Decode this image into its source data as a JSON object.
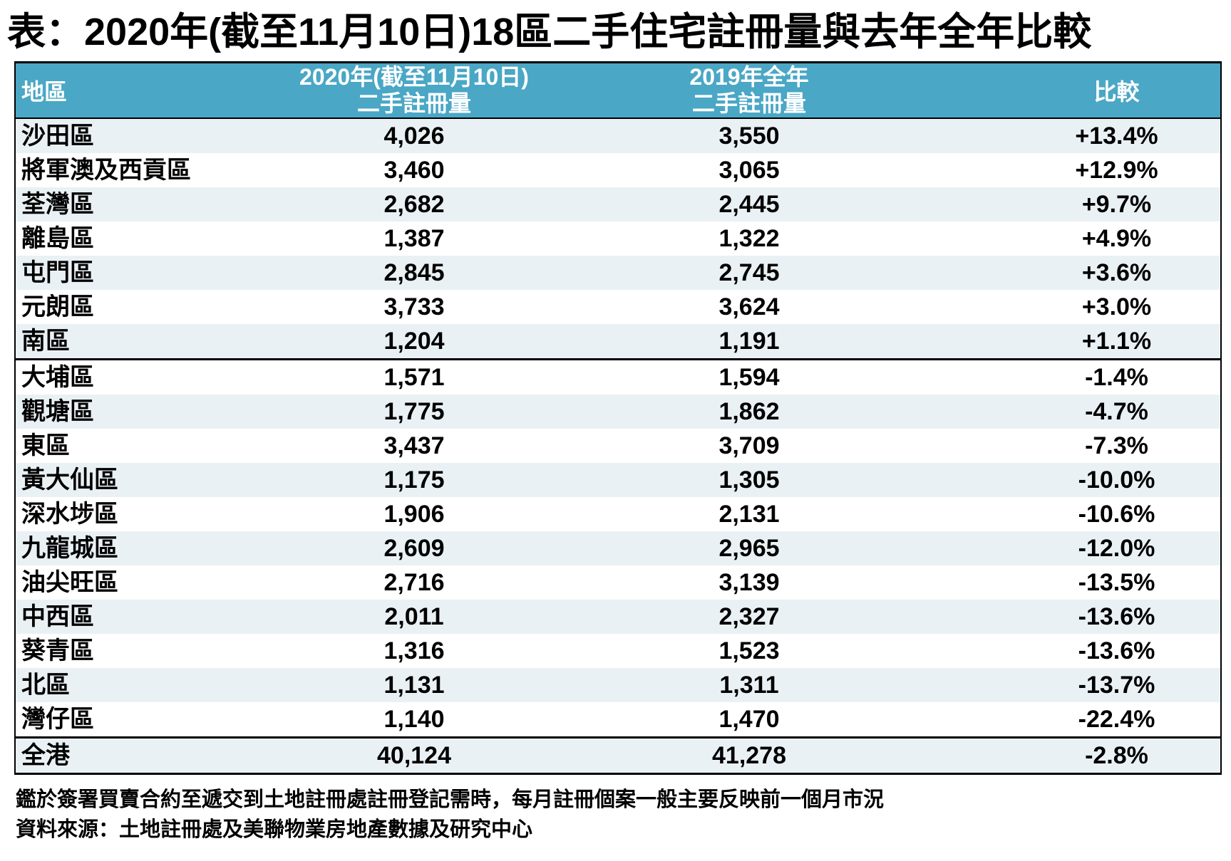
{
  "title": "表：2020年(截至11月10日)18區二手住宅註冊量與去年全年比較",
  "header": {
    "col1": "地區",
    "col2_line1": "2020年(截至11月10日)",
    "col2_line2": "二手註冊量",
    "col3_line1": "2019年全年",
    "col3_line2": "二手註冊量",
    "col4": "比較"
  },
  "chart_data": {
    "type": "table",
    "title": "表：2020年(截至11月10日)18區二手住宅註冊量與去年全年比較",
    "columns": [
      "地區",
      "2020年(截至11月10日)二手註冊量",
      "2019年全年二手註冊量",
      "比較"
    ],
    "divider_above_index": 7,
    "rows": [
      {
        "district": "沙田區",
        "reg_2020": "4,026",
        "reg_2019": "3,550",
        "change": "+13.4%"
      },
      {
        "district": "將軍澳及西貢區",
        "reg_2020": "3,460",
        "reg_2019": "3,065",
        "change": "+12.9%"
      },
      {
        "district": "荃灣區",
        "reg_2020": "2,682",
        "reg_2019": "2,445",
        "change": "+9.7%"
      },
      {
        "district": "離島區",
        "reg_2020": "1,387",
        "reg_2019": "1,322",
        "change": "+4.9%"
      },
      {
        "district": "屯門區",
        "reg_2020": "2,845",
        "reg_2019": "2,745",
        "change": "+3.6%"
      },
      {
        "district": "元朗區",
        "reg_2020": "3,733",
        "reg_2019": "3,624",
        "change": "+3.0%"
      },
      {
        "district": "南區",
        "reg_2020": "1,204",
        "reg_2019": "1,191",
        "change": "+1.1%"
      },
      {
        "district": "大埔區",
        "reg_2020": "1,571",
        "reg_2019": "1,594",
        "change": "-1.4%"
      },
      {
        "district": "觀塘區",
        "reg_2020": "1,775",
        "reg_2019": "1,862",
        "change": "-4.7%"
      },
      {
        "district": "東區",
        "reg_2020": "3,437",
        "reg_2019": "3,709",
        "change": "-7.3%"
      },
      {
        "district": "黃大仙區",
        "reg_2020": "1,175",
        "reg_2019": "1,305",
        "change": "-10.0%"
      },
      {
        "district": "深水埗區",
        "reg_2020": "1,906",
        "reg_2019": "2,131",
        "change": "-10.6%"
      },
      {
        "district": "九龍城區",
        "reg_2020": "2,609",
        "reg_2019": "2,965",
        "change": "-12.0%"
      },
      {
        "district": "油尖旺區",
        "reg_2020": "2,716",
        "reg_2019": "3,139",
        "change": "-13.5%"
      },
      {
        "district": "中西區",
        "reg_2020": "2,011",
        "reg_2019": "2,327",
        "change": "-13.6%"
      },
      {
        "district": "葵青區",
        "reg_2020": "1,316",
        "reg_2019": "1,523",
        "change": "-13.6%"
      },
      {
        "district": "北區",
        "reg_2020": "1,131",
        "reg_2019": "1,311",
        "change": "-13.7%"
      },
      {
        "district": "灣仔區",
        "reg_2020": "1,140",
        "reg_2019": "1,470",
        "change": "-22.4%"
      }
    ],
    "total_row": {
      "district": "全港",
      "reg_2020": "40,124",
      "reg_2019": "41,278",
      "change": "-2.8%"
    }
  },
  "footnotes": [
    "鑑於簽署買賣合約至遞交到土地註冊處註冊登記需時，每月註冊個案一般主要反映前一個月市況",
    "資料來源：土地註冊處及美聯物業房地產數據及研究中心"
  ],
  "colors": {
    "header_bg": "#4aa7c5",
    "stripe_bg": "#eaf1f5",
    "border": "#000000",
    "header_text": "#ffffff"
  }
}
